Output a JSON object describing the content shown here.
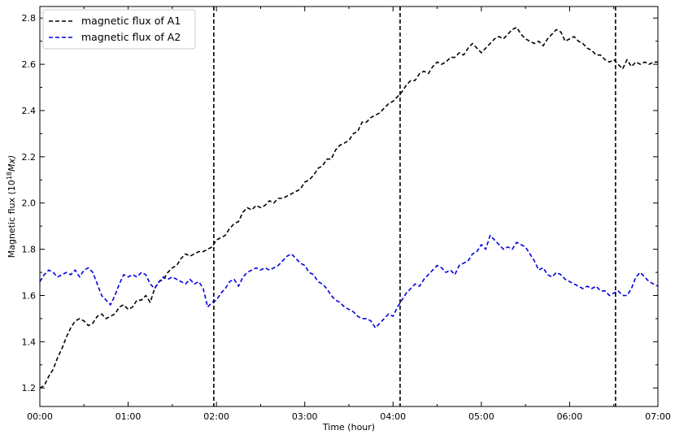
{
  "chart_data": {
    "type": "line",
    "xlabel": "Time (hour)",
    "ylabel_main": "Magnetic flux  (10",
    "ylabel_exp": "18",
    "ylabel_unit": "Mx)",
    "xlim": [
      0,
      7
    ],
    "ylim": [
      1.12,
      2.85
    ],
    "x_ticks": [
      0,
      1,
      2,
      3,
      4,
      5,
      6,
      7
    ],
    "x_tick_labels": [
      "00:00",
      "01:00",
      "02:00",
      "03:00",
      "04:00",
      "05:00",
      "06:00",
      "07:00"
    ],
    "y_ticks": [
      1.2,
      1.4,
      1.6,
      1.8,
      2.0,
      2.2,
      2.4,
      2.6,
      2.8
    ],
    "y_tick_labels": [
      "1.2",
      "1.4",
      "1.6",
      "1.8",
      "2.0",
      "2.2",
      "2.4",
      "2.6",
      "2.8"
    ],
    "vertical_lines": [
      1.97,
      4.08,
      6.52
    ],
    "legend_position": "upper-left",
    "series": [
      {
        "name": "magnetic flux of A1",
        "color": "#000000",
        "x": [
          0.0,
          0.05,
          0.1,
          0.15,
          0.2,
          0.25,
          0.3,
          0.35,
          0.4,
          0.45,
          0.5,
          0.55,
          0.6,
          0.65,
          0.7,
          0.75,
          0.8,
          0.85,
          0.9,
          0.95,
          1.0,
          1.05,
          1.1,
          1.15,
          1.2,
          1.25,
          1.3,
          1.35,
          1.4,
          1.45,
          1.5,
          1.55,
          1.6,
          1.65,
          1.7,
          1.75,
          1.8,
          1.85,
          1.9,
          1.95,
          2.0,
          2.05,
          2.1,
          2.15,
          2.2,
          2.25,
          2.3,
          2.35,
          2.4,
          2.45,
          2.5,
          2.55,
          2.6,
          2.65,
          2.7,
          2.75,
          2.8,
          2.85,
          2.9,
          2.95,
          3.0,
          3.05,
          3.1,
          3.15,
          3.2,
          3.25,
          3.3,
          3.35,
          3.4,
          3.45,
          3.5,
          3.55,
          3.6,
          3.65,
          3.7,
          3.75,
          3.8,
          3.85,
          3.9,
          3.95,
          4.0,
          4.05,
          4.1,
          4.15,
          4.2,
          4.25,
          4.3,
          4.35,
          4.4,
          4.45,
          4.5,
          4.55,
          4.6,
          4.65,
          4.7,
          4.75,
          4.8,
          4.85,
          4.9,
          4.95,
          5.0,
          5.05,
          5.1,
          5.15,
          5.2,
          5.25,
          5.3,
          5.35,
          5.4,
          5.45,
          5.5,
          5.55,
          5.6,
          5.65,
          5.7,
          5.75,
          5.8,
          5.85,
          5.9,
          5.95,
          6.0,
          6.05,
          6.1,
          6.15,
          6.2,
          6.25,
          6.3,
          6.35,
          6.4,
          6.45,
          6.5,
          6.55,
          6.6,
          6.65,
          6.7,
          6.75,
          6.8,
          6.85,
          6.9,
          6.95,
          7.0
        ],
        "y": [
          1.2,
          1.21,
          1.25,
          1.28,
          1.33,
          1.37,
          1.42,
          1.46,
          1.49,
          1.5,
          1.49,
          1.47,
          1.48,
          1.51,
          1.52,
          1.5,
          1.51,
          1.52,
          1.55,
          1.56,
          1.54,
          1.55,
          1.58,
          1.58,
          1.6,
          1.57,
          1.63,
          1.66,
          1.67,
          1.7,
          1.72,
          1.73,
          1.76,
          1.78,
          1.77,
          1.78,
          1.79,
          1.79,
          1.8,
          1.81,
          1.84,
          1.85,
          1.86,
          1.89,
          1.91,
          1.92,
          1.96,
          1.98,
          1.97,
          1.99,
          1.98,
          1.99,
          2.01,
          2.0,
          2.02,
          2.02,
          2.03,
          2.04,
          2.05,
          2.06,
          2.09,
          2.1,
          2.12,
          2.15,
          2.16,
          2.19,
          2.19,
          2.23,
          2.25,
          2.26,
          2.27,
          2.3,
          2.31,
          2.35,
          2.35,
          2.37,
          2.38,
          2.39,
          2.41,
          2.43,
          2.44,
          2.46,
          2.48,
          2.51,
          2.53,
          2.53,
          2.56,
          2.57,
          2.56,
          2.59,
          2.61,
          2.6,
          2.61,
          2.63,
          2.63,
          2.65,
          2.64,
          2.67,
          2.69,
          2.67,
          2.65,
          2.67,
          2.69,
          2.71,
          2.72,
          2.71,
          2.73,
          2.75,
          2.76,
          2.73,
          2.71,
          2.7,
          2.69,
          2.7,
          2.68,
          2.71,
          2.73,
          2.75,
          2.74,
          2.7,
          2.71,
          2.72,
          2.7,
          2.69,
          2.67,
          2.66,
          2.64,
          2.64,
          2.62,
          2.61,
          2.62,
          2.6,
          2.58,
          2.62,
          2.59,
          2.61,
          2.6,
          2.61,
          2.6,
          2.61,
          2.61
        ]
      },
      {
        "name": "magnetic flux of A2",
        "color": "#0000dd",
        "x": [
          0.0,
          0.05,
          0.1,
          0.15,
          0.2,
          0.25,
          0.3,
          0.35,
          0.4,
          0.45,
          0.5,
          0.55,
          0.6,
          0.65,
          0.7,
          0.75,
          0.8,
          0.85,
          0.9,
          0.95,
          1.0,
          1.05,
          1.1,
          1.15,
          1.2,
          1.25,
          1.3,
          1.35,
          1.4,
          1.45,
          1.5,
          1.55,
          1.6,
          1.65,
          1.7,
          1.75,
          1.8,
          1.85,
          1.9,
          1.95,
          2.0,
          2.05,
          2.1,
          2.15,
          2.2,
          2.25,
          2.3,
          2.35,
          2.4,
          2.45,
          2.5,
          2.55,
          2.6,
          2.65,
          2.7,
          2.75,
          2.8,
          2.85,
          2.9,
          2.95,
          3.0,
          3.05,
          3.1,
          3.15,
          3.2,
          3.25,
          3.3,
          3.35,
          3.4,
          3.45,
          3.5,
          3.55,
          3.6,
          3.65,
          3.7,
          3.75,
          3.8,
          3.85,
          3.9,
          3.95,
          4.0,
          4.05,
          4.1,
          4.15,
          4.2,
          4.25,
          4.3,
          4.35,
          4.4,
          4.45,
          4.5,
          4.55,
          4.6,
          4.65,
          4.7,
          4.75,
          4.8,
          4.85,
          4.9,
          4.95,
          5.0,
          5.05,
          5.1,
          5.15,
          5.2,
          5.25,
          5.3,
          5.35,
          5.4,
          5.45,
          5.5,
          5.55,
          5.6,
          5.65,
          5.7,
          5.75,
          5.8,
          5.85,
          5.9,
          5.95,
          6.0,
          6.05,
          6.1,
          6.15,
          6.2,
          6.25,
          6.3,
          6.35,
          6.4,
          6.45,
          6.5,
          6.55,
          6.6,
          6.65,
          6.7,
          6.75,
          6.8,
          6.85,
          6.9,
          6.95,
          7.0
        ],
        "y": [
          1.66,
          1.69,
          1.71,
          1.7,
          1.68,
          1.69,
          1.7,
          1.69,
          1.71,
          1.68,
          1.71,
          1.72,
          1.7,
          1.65,
          1.6,
          1.58,
          1.56,
          1.6,
          1.65,
          1.69,
          1.68,
          1.69,
          1.68,
          1.7,
          1.69,
          1.65,
          1.63,
          1.66,
          1.68,
          1.67,
          1.68,
          1.67,
          1.66,
          1.65,
          1.67,
          1.65,
          1.66,
          1.63,
          1.55,
          1.57,
          1.58,
          1.61,
          1.63,
          1.66,
          1.67,
          1.64,
          1.68,
          1.7,
          1.71,
          1.72,
          1.71,
          1.72,
          1.71,
          1.72,
          1.73,
          1.75,
          1.77,
          1.78,
          1.76,
          1.74,
          1.73,
          1.7,
          1.69,
          1.66,
          1.65,
          1.63,
          1.6,
          1.58,
          1.57,
          1.55,
          1.54,
          1.53,
          1.51,
          1.5,
          1.5,
          1.49,
          1.46,
          1.48,
          1.5,
          1.52,
          1.51,
          1.55,
          1.58,
          1.61,
          1.63,
          1.65,
          1.64,
          1.67,
          1.69,
          1.71,
          1.73,
          1.72,
          1.7,
          1.71,
          1.69,
          1.73,
          1.74,
          1.75,
          1.78,
          1.79,
          1.82,
          1.8,
          1.86,
          1.84,
          1.82,
          1.8,
          1.81,
          1.8,
          1.83,
          1.82,
          1.81,
          1.78,
          1.75,
          1.71,
          1.72,
          1.69,
          1.68,
          1.7,
          1.69,
          1.67,
          1.66,
          1.65,
          1.64,
          1.63,
          1.64,
          1.63,
          1.64,
          1.62,
          1.62,
          1.6,
          1.61,
          1.62,
          1.6,
          1.6,
          1.63,
          1.68,
          1.7,
          1.68,
          1.66,
          1.65,
          1.64
        ]
      }
    ]
  }
}
